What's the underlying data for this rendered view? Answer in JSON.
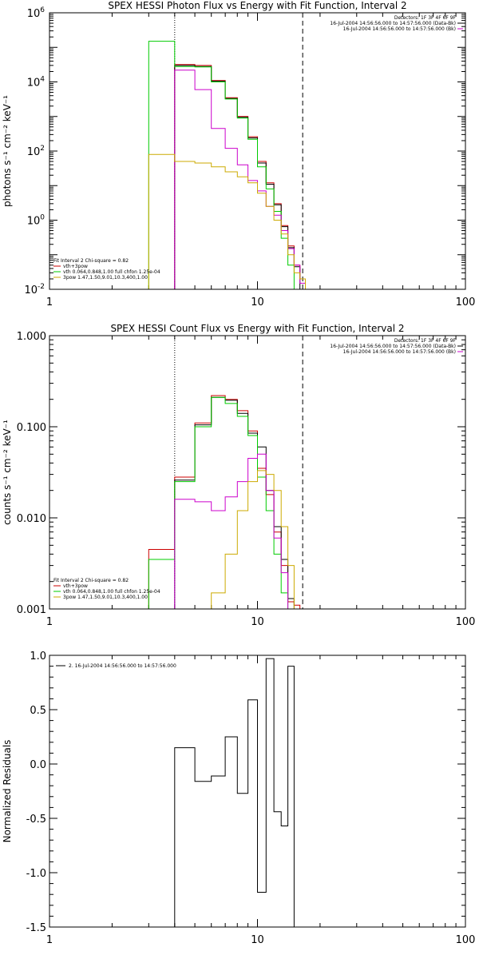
{
  "chart_data": [
    {
      "type": "line",
      "title": "SPEX HESSI Photon Flux vs Energy with Fit Function, Interval 2",
      "xlabel": "",
      "ylabel": "photons s⁻¹ cm⁻² keV⁻¹",
      "xscale": "log",
      "yscale": "log",
      "xlim": [
        1,
        100
      ],
      "ylim": [
        0.01,
        1000000
      ],
      "xticks": [
        {
          "v": 1,
          "label": "1"
        },
        {
          "v": 10,
          "label": "10"
        },
        {
          "v": 100,
          "label": "100"
        }
      ],
      "yticks": [
        {
          "v": 0.01,
          "b": "10",
          "e": "-2"
        },
        {
          "v": 1,
          "b": "10",
          "e": "0"
        },
        {
          "v": 100,
          "b": "10",
          "e": "2"
        },
        {
          "v": 10000,
          "b": "10",
          "e": "4"
        },
        {
          "v": 1000000,
          "b": "10",
          "e": "6"
        }
      ],
      "vlines": [
        {
          "x": 4,
          "style": "dotted"
        },
        {
          "x": 16.5,
          "style": "dashed"
        }
      ],
      "info": [
        "Detectors: 1F 3F 4F 6F 9F",
        "16-Jul-2004 14:56:56.000 to 14:57:56.000 (Data-Bk)",
        "16-Jul-2004 14:56:56.000 to 14:57:56.000 (Bk)"
      ],
      "legend_title": "Fit Interval 2   Chi-square = 0.82",
      "bin_edges": [
        3,
        4,
        5,
        6,
        7,
        8,
        9,
        10,
        11,
        12,
        13,
        14,
        15,
        16,
        17,
        18
      ],
      "series": [
        {
          "name": "vth+3pow",
          "color": "#cc0000",
          "values": [
            null,
            32000,
            30000,
            11000,
            3500,
            1000,
            260,
            50,
            12,
            3,
            0.7,
            0.18,
            0.05,
            0.02,
            0.004
          ]
        },
        {
          "name": "",
          "color": "#000000",
          "values": [
            null,
            30000,
            28000,
            10500,
            3300,
            950,
            240,
            45,
            11,
            2.8,
            0.65,
            0.16,
            0.045,
            null,
            null
          ]
        },
        {
          "name": "vth 0.064,0.848,1.00  full chfon 1.25e-04",
          "color": "#00cc00",
          "values": [
            150000,
            28000,
            27000,
            10000,
            3200,
            900,
            220,
            35,
            8,
            1.8,
            0.3,
            0.05,
            0.01,
            null,
            null
          ]
        },
        {
          "name": "",
          "color": "#cc00cc",
          "values": [
            null,
            22000,
            6000,
            450,
            120,
            40,
            14,
            7,
            2.5,
            1.4,
            0.5,
            0.15,
            0.05,
            0.015,
            null
          ]
        },
        {
          "name": "3pow 1.47,1.50,9.01,10.3,400,1.00",
          "color": "#ccaa00",
          "values": [
            80,
            50,
            45,
            35,
            25,
            18,
            12,
            6,
            2.5,
            1,
            0.4,
            0.1,
            0.03,
            0.02,
            0.01
          ]
        }
      ]
    },
    {
      "type": "line",
      "title": "SPEX HESSI Count Flux vs Energy with Fit Function, Interval 2",
      "xlabel": "",
      "ylabel": "counts s⁻¹ cm⁻² keV⁻¹",
      "xscale": "log",
      "yscale": "log",
      "xlim": [
        1,
        100
      ],
      "ylim": [
        0.001,
        1.0
      ],
      "xticks": [
        {
          "v": 1,
          "label": "1"
        },
        {
          "v": 10,
          "label": "10"
        },
        {
          "v": 100,
          "label": "100"
        }
      ],
      "yticks": [
        {
          "v": 0.001,
          "label": "0.001"
        },
        {
          "v": 0.01,
          "label": "0.010"
        },
        {
          "v": 0.1,
          "label": "0.100"
        },
        {
          "v": 1.0,
          "label": "1.000"
        }
      ],
      "vlines": [
        {
          "x": 4,
          "style": "dotted"
        },
        {
          "x": 16.5,
          "style": "dashed"
        }
      ],
      "info": [
        "Detectors: 1F 3F 4F 6F 9F",
        "16-Jul-2004 14:56:56.000 to 14:57:56.000 (Data-Bk)",
        "16-Jul-2004 14:56:56.000 to 14:57:56.000 (Bk)"
      ],
      "legend_title": "Fit Interval 2   Chi-square = 0.82",
      "bin_edges": [
        3,
        4,
        5,
        6,
        7,
        8,
        9,
        10,
        11,
        12,
        13,
        14,
        15,
        16,
        17,
        18
      ],
      "series": [
        {
          "name": "vth+3pow",
          "color": "#cc0000",
          "values": [
            0.0045,
            0.028,
            0.11,
            0.22,
            0.2,
            0.15,
            0.09,
            0.035,
            0.018,
            0.007,
            0.003,
            0.0012,
            0.0011,
            null,
            null
          ]
        },
        {
          "name": "",
          "color": "#000000",
          "values": [
            null,
            0.026,
            0.105,
            0.21,
            0.195,
            0.14,
            0.085,
            0.06,
            0.02,
            0.008,
            0.0035,
            0.0013,
            null,
            null,
            null
          ]
        },
        {
          "name": "vth 0.064,0.848,1.00  full chfon 1.25e-04",
          "color": "#00cc00",
          "values": [
            0.0035,
            0.025,
            0.1,
            0.21,
            0.18,
            0.13,
            0.08,
            0.028,
            0.012,
            0.004,
            0.0015,
            0.001,
            null,
            null,
            null
          ]
        },
        {
          "name": "",
          "color": "#cc00cc",
          "values": [
            null,
            0.016,
            0.015,
            0.012,
            0.017,
            0.025,
            0.045,
            0.05,
            0.02,
            0.006,
            0.0025,
            null,
            null,
            null,
            null
          ]
        },
        {
          "name": "3pow 1.47,1.50,9.01,10.3,400,1.00",
          "color": "#ccaa00",
          "values": [
            null,
            0.001,
            0.001,
            0.0015,
            0.004,
            0.012,
            0.025,
            0.033,
            0.03,
            0.02,
            0.008,
            0.003,
            0.001,
            null,
            null
          ]
        }
      ]
    },
    {
      "type": "line",
      "title": "",
      "xlabel": "",
      "ylabel": "Normalized Residuals",
      "xscale": "log",
      "yscale": "linear",
      "xlim": [
        1,
        100
      ],
      "ylim": [
        -1.5,
        1.0
      ],
      "xticks": [
        {
          "v": 1,
          "label": "1"
        },
        {
          "v": 10,
          "label": "10"
        },
        {
          "v": 100,
          "label": "100"
        }
      ],
      "yticks": [
        {
          "v": -1.5,
          "label": "-1.5"
        },
        {
          "v": -1.0,
          "label": "-1.0"
        },
        {
          "v": -0.5,
          "label": "-0.5"
        },
        {
          "v": 0.0,
          "label": "0.0"
        },
        {
          "v": 0.5,
          "label": "0.5"
        },
        {
          "v": 1.0,
          "label": "1.0"
        }
      ],
      "legend": "2. 16-Jul-2004 14:56:56.000 to 14:57:56.000",
      "bin_edges": [
        4,
        5,
        6,
        7,
        8,
        9,
        10,
        11,
        12,
        13,
        14,
        15,
        16.5
      ],
      "series": [
        {
          "name": "",
          "color": "#000000",
          "values": [
            0.15,
            -0.16,
            -0.11,
            0.25,
            -0.27,
            0.59,
            -1.18,
            0.97,
            -0.44,
            -0.57,
            0.9,
            -1.5
          ]
        }
      ]
    }
  ]
}
